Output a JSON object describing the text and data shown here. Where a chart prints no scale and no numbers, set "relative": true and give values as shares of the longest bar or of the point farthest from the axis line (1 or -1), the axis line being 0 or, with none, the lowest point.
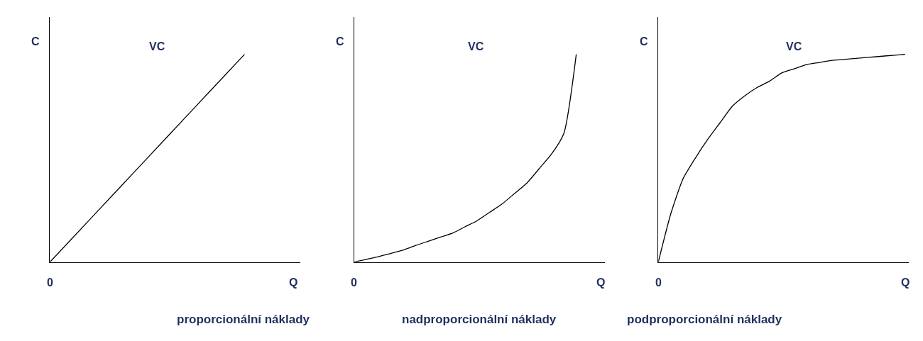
{
  "chart_data": [
    {
      "type": "line",
      "relative": true,
      "title": "proporcionální náklady",
      "xlabel": "Q",
      "ylabel": "C",
      "annotations": [
        "0"
      ],
      "categories": [
        null,
        null,
        null,
        null,
        null,
        null,
        null,
        null,
        null,
        null,
        null
      ],
      "series": [
        {
          "name": "VC",
          "color": "#000000",
          "values": [
            0,
            0.125,
            0.25,
            0.375,
            0.5,
            0.625,
            0.75,
            0.875,
            1,
            null,
            null
          ]
        }
      ]
    },
    {
      "type": "line",
      "relative": true,
      "title": "nadproporcionální náklady",
      "xlabel": "Q",
      "ylabel": "C",
      "annotations": [
        "0"
      ],
      "categories": [
        null,
        null,
        null,
        null,
        null,
        null,
        null,
        null,
        null,
        null,
        null,
        null,
        null,
        null,
        null,
        null,
        null,
        null,
        null,
        null,
        null
      ],
      "series": [
        {
          "name": "VC",
          "color": "#000000",
          "values": [
            0,
            0.013,
            0.026,
            0.042,
            0.058,
            0.08,
            0.1,
            0.12,
            0.14,
            0.17,
            0.2,
            0.24,
            0.28,
            0.33,
            0.38,
            0.45,
            0.52,
            0.62,
            1,
            null,
            null
          ]
        }
      ]
    },
    {
      "type": "line",
      "relative": true,
      "title": "podproporcionální náklady",
      "xlabel": "Q",
      "ylabel": "C",
      "annotations": [
        "0"
      ],
      "categories": [
        null,
        null,
        null,
        null,
        null,
        null,
        null,
        null,
        null,
        null,
        null,
        null,
        null,
        null,
        null,
        null,
        null,
        null,
        null,
        null,
        null
      ],
      "series": [
        {
          "name": "VC",
          "color": "#000000",
          "values": [
            0,
            0.23,
            0.4,
            0.5,
            0.59,
            0.67,
            0.75,
            0.8,
            0.84,
            0.87,
            0.91,
            0.93,
            0.95,
            0.96,
            0.97,
            0.975,
            0.98,
            0.985,
            0.99,
            0.995,
            1
          ]
        }
      ]
    }
  ]
}
